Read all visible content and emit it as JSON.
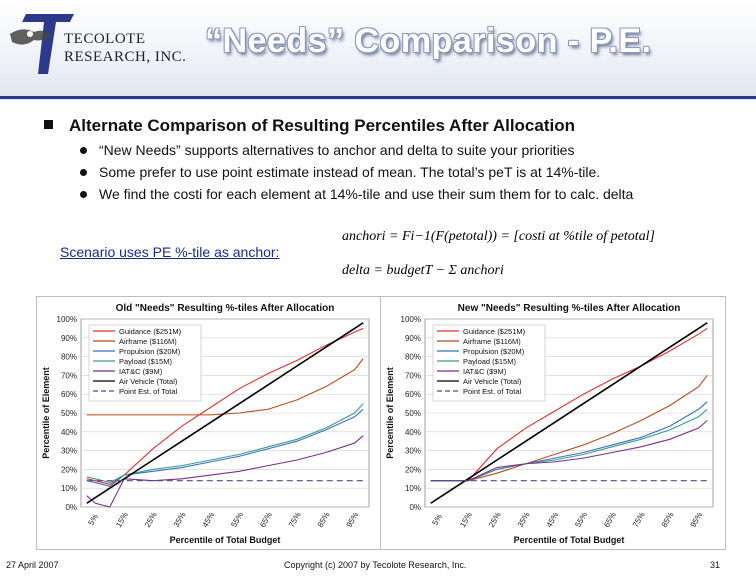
{
  "header": {
    "brand_line1": "TECOLOTE",
    "brand_line2": "RESEARCH, INC.",
    "title": "“Needs” Comparison - P.E."
  },
  "content": {
    "main_bullet": "Alternate Comparison of Resulting Percentiles After Allocation",
    "sub_bullets": [
      "“New Needs” supports alternatives to anchor and delta to suite your priorities",
      "Some prefer to use point estimate instead of mean.  The total’s peT is at 14%-tile.",
      "We find the costi for each element at 14%-tile and use their sum them for to calc. delta"
    ],
    "scenario": "Scenario uses PE %-tile as anchor:"
  },
  "formula": {
    "line1": "anchori = Fi−1(F(petotal)) = [costi at %tile of petotal]",
    "line2": "delta = budgetT − Σ anchori"
  },
  "colors": {
    "guidance": "#e03030",
    "airframe": "#b84a1e",
    "propulsion": "#3a6fbf",
    "payload": "#3b9a94",
    "iatc": "#7a2f8a",
    "air_vehicle": "#000000",
    "point_est": "#4a4f8a"
  },
  "chart_data": [
    {
      "type": "line",
      "title": "Old \"Needs\" Resulting %-tiles After Allocation",
      "xlabel": "Percentile of Total Budget",
      "ylabel": "Percentile of Element",
      "categories": [
        "5%",
        "15%",
        "25%",
        "35%",
        "45%",
        "55%",
        "65%",
        "75%",
        "85%",
        "95%"
      ],
      "y_ticks": [
        "0%",
        "10%",
        "20%",
        "30%",
        "40%",
        "50%",
        "60%",
        "70%",
        "80%",
        "90%",
        "100%"
      ],
      "ylim": [
        0,
        100
      ],
      "x": [
        2,
        5,
        10,
        15,
        25,
        35,
        45,
        55,
        65,
        75,
        85,
        95,
        98
      ],
      "series": [
        {
          "name": "Guidance ($251M)",
          "color": "#e03030",
          "values": [
            15,
            14,
            12,
            17,
            31,
            43,
            53,
            63,
            71,
            78,
            86,
            93,
            95
          ]
        },
        {
          "name": "Airframe ($116M)",
          "color": "#b84a1e",
          "values": [
            49,
            49,
            49,
            49,
            49,
            49,
            49,
            50,
            52,
            57,
            64,
            73,
            79
          ]
        },
        {
          "name": "Propulsion ($20M)",
          "color": "#3a6fbf",
          "values": [
            14,
            13,
            11,
            17,
            19,
            21,
            24,
            27,
            31,
            35,
            41,
            48,
            52
          ]
        },
        {
          "name": "Payload ($15M)",
          "color": "#3b9a94",
          "values": [
            16,
            15,
            13,
            17,
            20,
            22,
            25,
            28,
            32,
            36,
            42,
            50,
            55
          ]
        },
        {
          "name": "IAT&C ($9M)",
          "color": "#7a2f8a",
          "values": [
            6,
            2,
            0,
            15,
            14,
            15,
            17,
            19,
            22,
            25,
            29,
            34,
            38
          ]
        },
        {
          "name": "Air Vehicle (Total)",
          "color": "#000000",
          "values": [
            2,
            5,
            10,
            15,
            25,
            35,
            45,
            55,
            65,
            75,
            85,
            95,
            98
          ]
        },
        {
          "name": "Point Est. of Total",
          "color": "#4a4f8a",
          "values": [
            14,
            14,
            14,
            14,
            14,
            14,
            14,
            14,
            14,
            14,
            14,
            14,
            14
          ],
          "dashed": true
        }
      ]
    },
    {
      "type": "line",
      "title": "New \"Needs\" Resulting %-tiles After Allocation",
      "xlabel": "Percentile of Total Budget",
      "ylabel": "Percentile of Element",
      "categories": [
        "5%",
        "15%",
        "25%",
        "35%",
        "45%",
        "55%",
        "65%",
        "75%",
        "85%",
        "95%"
      ],
      "y_ticks": [
        "0%",
        "10%",
        "20%",
        "30%",
        "40%",
        "50%",
        "60%",
        "70%",
        "80%",
        "90%",
        "100%"
      ],
      "ylim": [
        0,
        100
      ],
      "x": [
        2,
        5,
        10,
        15,
        25,
        35,
        45,
        55,
        65,
        75,
        85,
        95,
        98
      ],
      "series": [
        {
          "name": "Guidance ($251M)",
          "color": "#e03030",
          "values": [
            14,
            14,
            14,
            14,
            31,
            42,
            51,
            60,
            68,
            75,
            83,
            92,
            95
          ]
        },
        {
          "name": "Airframe ($116M)",
          "color": "#b84a1e",
          "values": [
            14,
            14,
            14,
            14,
            18,
            23,
            28,
            33,
            39,
            46,
            54,
            64,
            70
          ]
        },
        {
          "name": "Propulsion ($20M)",
          "color": "#3a6fbf",
          "values": [
            14,
            14,
            14,
            14,
            20,
            23,
            26,
            29,
            33,
            37,
            43,
            52,
            56
          ]
        },
        {
          "name": "Payload ($15M)",
          "color": "#3b9a94",
          "values": [
            14,
            14,
            14,
            14,
            20,
            23,
            25,
            28,
            32,
            36,
            41,
            48,
            52
          ]
        },
        {
          "name": "IAT&C ($9M)",
          "color": "#7a2f8a",
          "values": [
            14,
            14,
            14,
            14,
            21,
            23,
            24,
            26,
            29,
            32,
            36,
            42,
            46
          ]
        },
        {
          "name": "Air Vehicle (Total)",
          "color": "#000000",
          "values": [
            2,
            5,
            10,
            15,
            25,
            35,
            45,
            55,
            65,
            75,
            85,
            95,
            98
          ]
        },
        {
          "name": "Point Est. of Total",
          "color": "#4a4f8a",
          "values": [
            14,
            14,
            14,
            14,
            14,
            14,
            14,
            14,
            14,
            14,
            14,
            14,
            14
          ],
          "dashed": true
        }
      ]
    }
  ],
  "footer": {
    "date": "27 April 2007",
    "copyright": "Copyright (c) 2007 by Tecolote Research, Inc.",
    "page": "31"
  }
}
